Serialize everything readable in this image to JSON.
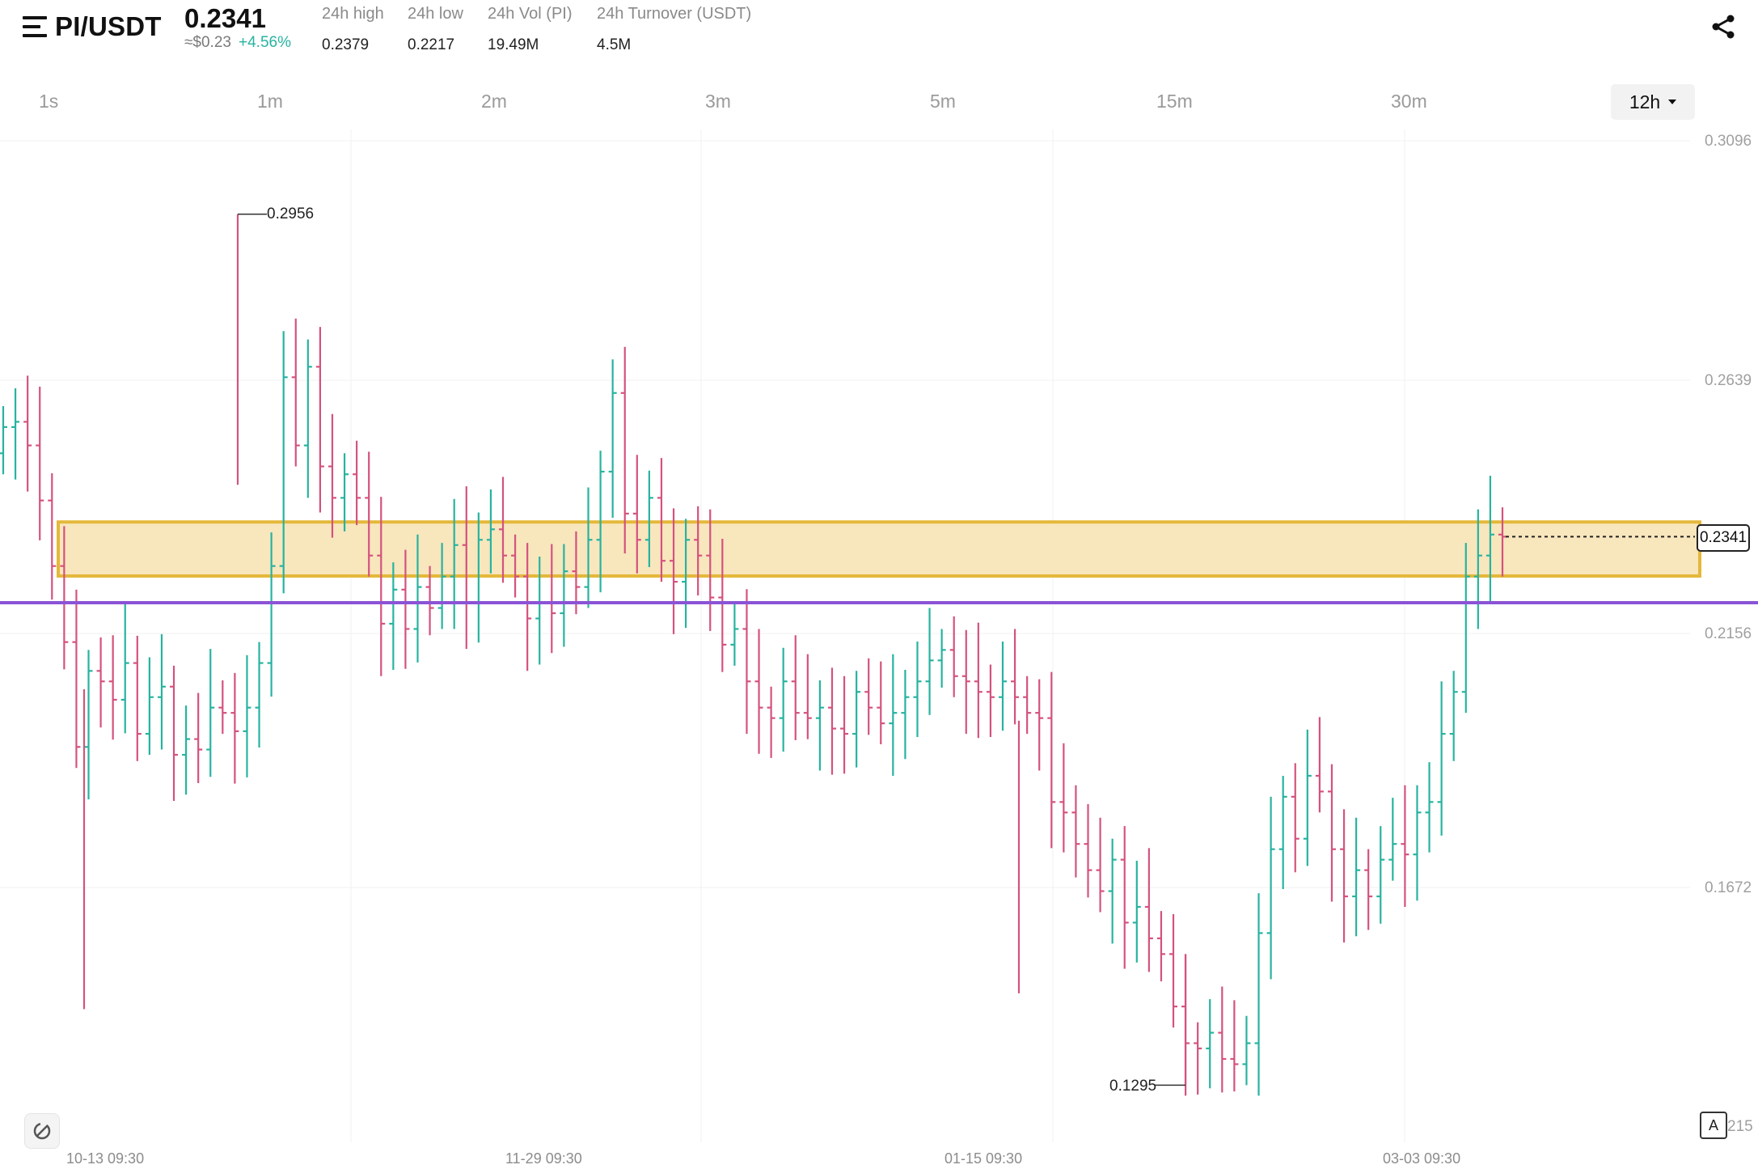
{
  "header": {
    "pair": "PI/USDT",
    "last_price": "0.2341",
    "usd_price": "≈$0.23",
    "change": "+4.56%",
    "stats": [
      {
        "label": "24h high",
        "value": "0.2379"
      },
      {
        "label": "24h low",
        "value": "0.2217"
      },
      {
        "label": "24h Vol (PI)",
        "value": "19.49M"
      },
      {
        "label": "24h Turnover (USDT)",
        "value": "4.5M"
      }
    ]
  },
  "intervals": [
    "1s",
    "1m",
    "2m",
    "3m",
    "5m",
    "15m",
    "30m"
  ],
  "selected_interval": "12h",
  "chart_data": {
    "type": "candlestick",
    "y_axis_labels": [
      "0.3096",
      "0.2639",
      "0.2156",
      "0.1672"
    ],
    "y_axis_partial_label": "215",
    "x_axis_labels": [
      "10-13 09:30",
      "11-29 09:30",
      "01-15 09:30",
      "03-03 09:30"
    ],
    "current_price": "0.2341",
    "high_marker": "0.2956",
    "low_marker": "0.1295",
    "highlight_zone": {
      "low": 0.2266,
      "high": 0.2369
    },
    "support_line": 0.2215,
    "colors": {
      "up": "#27b3a0",
      "down": "#d4527e",
      "zone_fill": "#f8e6bd",
      "zone_border": "#e4b83a",
      "support": "#8b53d6"
    },
    "close_series": [
      0.255,
      0.256,
      0.2515,
      0.241,
      0.2285,
      0.214,
      0.194,
      0.2085,
      0.2065,
      0.203,
      0.21,
      0.1965,
      0.2035,
      0.2055,
      0.1925,
      0.1955,
      0.1935,
      0.2015,
      0.2005,
      0.197,
      0.2015,
      0.21,
      0.2285,
      0.2645,
      0.2515,
      0.2665,
      0.2475,
      0.2415,
      0.246,
      0.2415,
      0.2305,
      0.2175,
      0.224,
      0.2165,
      0.2245,
      0.2205,
      0.2265,
      0.2325,
      0.2215,
      0.2335,
      0.2355,
      0.2305,
      0.2265,
      0.2185,
      0.2215,
      0.2195,
      0.2275,
      0.2245,
      0.2335,
      0.2465,
      0.2615,
      0.2385,
      0.2335,
      0.2415,
      0.2295,
      0.2255,
      0.2335,
      0.2305,
      0.2225,
      0.2135,
      0.2165,
      0.2065,
      0.2015,
      0.1995,
      0.2065,
      0.2005,
      0.1995,
      0.2015,
      0.1975,
      0.1965,
      0.2045,
      0.2015,
      0.1985,
      0.2005,
      0.2035,
      0.2065,
      0.2105,
      0.2125,
      0.2075,
      0.2065,
      0.2045,
      0.2035,
      0.2065,
      0.2035,
      0.2005,
      0.1995,
      0.1835,
      0.1815,
      0.1755,
      0.1705,
      0.1665,
      0.1725,
      0.1605,
      0.1635,
      0.1575,
      0.1545,
      0.1445,
      0.1375,
      0.1365,
      0.1395,
      0.1345,
      0.1335,
      0.1375,
      0.1585,
      0.1745,
      0.1845,
      0.1765,
      0.1885,
      0.1855,
      0.1745,
      0.1655,
      0.1705,
      0.1655,
      0.1725,
      0.1755,
      0.1735,
      0.1815,
      0.1835,
      0.1965,
      0.2045,
      0.2265,
      0.2305,
      0.2345,
      0.2341
    ]
  }
}
